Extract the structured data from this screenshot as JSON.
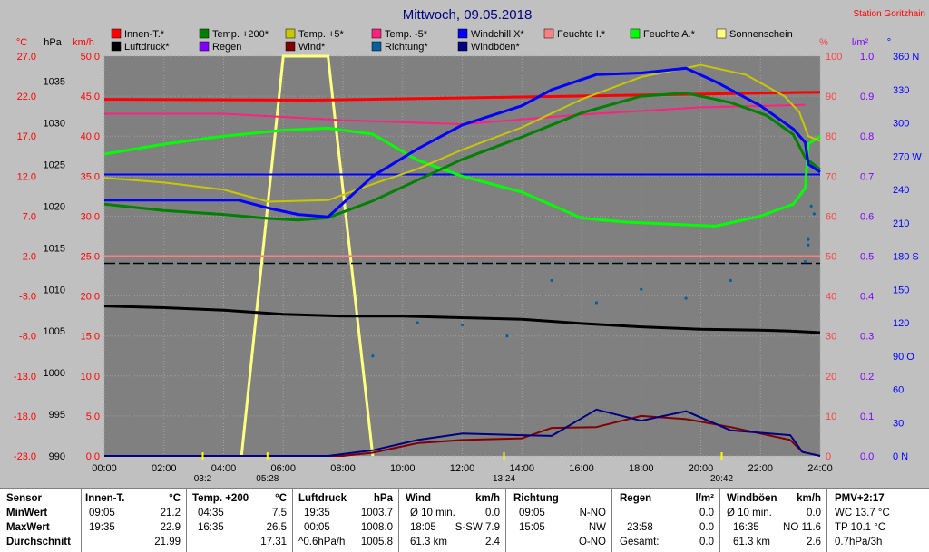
{
  "colors": {
    "background": "#c0c0c0",
    "plot": "#808080",
    "innen_t": "#ff0000",
    "temp200": "#008000",
    "temp5": "#c8c800",
    "temp_m5": "#ff2080",
    "windchill": "#0000ff",
    "feuchte_i": "#ff8080",
    "feuchte_a": "#00ff00",
    "sonnenschein": "#ffff80",
    "luftdruck": "#000000",
    "regen": "#8000ff",
    "wind": "#800000",
    "richtung": "#0060a0",
    "windboeen": "#000080"
  },
  "chart_data": {
    "type": "line",
    "title": "Mittwoch, 09.05.2018",
    "station": "Station Goritzhain",
    "x_ticks": [
      "00:00",
      "02:00",
      "04:00",
      "06:00",
      "08:00",
      "10:00",
      "12:00",
      "14:00",
      "16:00",
      "18:00",
      "20:00",
      "22:00",
      "24:00"
    ],
    "axes": [
      {
        "label": "°C",
        "color": "#ff0000",
        "ticks": [
          "27.0",
          "22.0",
          "17.0",
          "12.0",
          "7.0",
          "2.0",
          "-3.0",
          "-8.0",
          "-13.0",
          "-18.0",
          "-23.0"
        ],
        "range": [
          -23,
          27
        ]
      },
      {
        "label": "hPa",
        "color": "#000000",
        "ticks": [
          "1035",
          "1030",
          "1025",
          "1020",
          "1015",
          "1010",
          "1005",
          "1000",
          "995",
          "990"
        ],
        "range": [
          990,
          1038
        ]
      },
      {
        "label": "km/h",
        "color": "#ff0000",
        "ticks": [
          "50.0",
          "45.0",
          "40.0",
          "35.0",
          "30.0",
          "25.0",
          "20.0",
          "15.0",
          "10.0",
          "5.0",
          "0.0"
        ],
        "range": [
          0,
          50
        ]
      },
      {
        "label": "%",
        "color": "#ff4040",
        "ticks": [
          "100",
          "90",
          "80",
          "70",
          "60",
          "50",
          "40",
          "30",
          "20",
          "10",
          "0"
        ],
        "range": [
          0,
          100
        ]
      },
      {
        "label": "l/m²",
        "color": "#8000ff",
        "ticks": [
          "1.0",
          "0.9",
          "0.8",
          "0.7",
          "0.6",
          "0.5",
          "0.4",
          "0.3",
          "0.2",
          "0.1",
          "0.0"
        ],
        "range": [
          0,
          1
        ]
      },
      {
        "label": "°",
        "color": "#0000ff",
        "ticks": [
          "360 N",
          "330",
          "300",
          "270 W",
          "240",
          "210",
          "180 S",
          "150",
          "120",
          "90 O",
          "60",
          "30",
          "0 N"
        ],
        "range": [
          0,
          360
        ]
      }
    ],
    "legend": [
      {
        "name": "Innen-T.*",
        "color": "#ff0000"
      },
      {
        "name": "Temp. +200*",
        "color": "#008000"
      },
      {
        "name": "Temp. +5*",
        "color": "#c8c800"
      },
      {
        "name": "Temp. -5*",
        "color": "#ff2080"
      },
      {
        "name": "Windchill X*",
        "color": "#0000ff"
      },
      {
        "name": "Feuchte I.*",
        "color": "#ff8080"
      },
      {
        "name": "Feuchte A.*",
        "color": "#00ff00"
      },
      {
        "name": "Sonnenschein",
        "color": "#ffff80"
      },
      {
        "name": "Luftdruck*",
        "color": "#000000"
      },
      {
        "name": "Regen",
        "color": "#8000ff"
      },
      {
        "name": "Wind*",
        "color": "#800000"
      },
      {
        "name": "Richtung*",
        "color": "#0060a0"
      },
      {
        "name": "Windböen*",
        "color": "#000080"
      }
    ],
    "series": [
      {
        "name": "Innen-T.*",
        "axis": "°C",
        "color": "#ff0000",
        "width": 3,
        "points": [
          [
            0,
            21.6
          ],
          [
            7,
            21.5
          ],
          [
            14,
            21.9
          ],
          [
            24,
            22.5
          ]
        ]
      },
      {
        "name": "Feuchte I.*",
        "axis": "%",
        "color": "#ff8080",
        "width": 2,
        "points": [
          [
            0,
            50
          ],
          [
            24,
            50
          ]
        ]
      },
      {
        "name": "Temp. -5*",
        "axis": "°C",
        "color": "#ff2080",
        "width": 2,
        "points": [
          [
            0,
            19.8
          ],
          [
            4,
            19.8
          ],
          [
            8,
            19.0
          ],
          [
            12,
            18.5
          ],
          [
            16,
            19.7
          ],
          [
            20,
            20.6
          ],
          [
            23.5,
            20.9
          ]
        ]
      },
      {
        "name": "Feuchte A.*",
        "axis": "%",
        "color": "#00ff00",
        "width": 3,
        "points": [
          [
            0,
            75.5
          ],
          [
            2,
            78
          ],
          [
            4,
            80
          ],
          [
            6,
            81.5
          ],
          [
            7.5,
            82
          ],
          [
            9,
            80.5
          ],
          [
            10.5,
            74
          ],
          [
            12,
            70
          ],
          [
            14,
            66
          ],
          [
            16,
            59.5
          ],
          [
            17.5,
            58.5
          ],
          [
            19,
            58
          ],
          [
            20.5,
            57.5
          ],
          [
            22,
            60
          ],
          [
            23.1,
            63
          ],
          [
            23.5,
            67
          ],
          [
            23.6,
            78
          ],
          [
            24,
            80
          ]
        ]
      },
      {
        "name": "Temp. +200*",
        "axis": "°C",
        "color": "#008000",
        "width": 3,
        "points": [
          [
            0,
            8.5
          ],
          [
            2,
            7.7
          ],
          [
            4,
            7.2
          ],
          [
            5.5,
            6.7
          ],
          [
            6.5,
            6.5
          ],
          [
            7.5,
            6.8
          ],
          [
            9,
            8.9
          ],
          [
            10.5,
            11.5
          ],
          [
            12,
            14.1
          ],
          [
            14,
            16.9
          ],
          [
            16,
            19.9
          ],
          [
            18,
            22.0
          ],
          [
            19.5,
            22.4
          ],
          [
            21,
            21.2
          ],
          [
            22.2,
            19.6
          ],
          [
            23.1,
            17.2
          ],
          [
            23.5,
            14.3
          ],
          [
            24,
            12.8
          ]
        ]
      },
      {
        "name": "Temp. +5*",
        "axis": "°C",
        "color": "#c8c800",
        "width": 2,
        "points": [
          [
            0,
            11.8
          ],
          [
            2,
            11.2
          ],
          [
            4,
            10.3
          ],
          [
            5.5,
            8.8
          ],
          [
            7.5,
            9.0
          ],
          [
            9,
            11.0
          ],
          [
            10.5,
            12.9
          ],
          [
            12,
            15.3
          ],
          [
            14,
            18.1
          ],
          [
            16,
            21.6
          ],
          [
            18,
            24.4
          ],
          [
            20,
            25.9
          ],
          [
            21.5,
            24.7
          ],
          [
            22.8,
            22.0
          ],
          [
            23.3,
            20.0
          ],
          [
            23.6,
            17.0
          ],
          [
            24,
            16.4
          ]
        ]
      },
      {
        "name": "Windchill X*",
        "axis": "°C",
        "color": "#0000ff",
        "width": 3,
        "points": [
          [
            0,
            9.0
          ],
          [
            2,
            9.0
          ],
          [
            4.5,
            9.0
          ],
          [
            5.5,
            8.0
          ],
          [
            6.5,
            7.2
          ],
          [
            7.5,
            6.9
          ],
          [
            9,
            12.0
          ],
          [
            10.5,
            15.4
          ],
          [
            12,
            18.4
          ],
          [
            14,
            20.8
          ],
          [
            15,
            22.8
          ],
          [
            16.5,
            24.7
          ],
          [
            18,
            24.9
          ],
          [
            19.5,
            25.5
          ],
          [
            20.5,
            23.8
          ],
          [
            22,
            20.8
          ],
          [
            23.1,
            17.9
          ],
          [
            23.5,
            16.2
          ],
          [
            23.6,
            13.5
          ],
          [
            24,
            12.5
          ]
        ]
      },
      {
        "name": "Luftdruck*",
        "axis": "hPa",
        "color": "#000000",
        "width": 3,
        "points": [
          [
            0,
            1008.0
          ],
          [
            2,
            1007.8
          ],
          [
            4,
            1007.5
          ],
          [
            6,
            1007.0
          ],
          [
            8,
            1006.8
          ],
          [
            10,
            1006.8
          ],
          [
            12,
            1006.6
          ],
          [
            14,
            1006.4
          ],
          [
            16,
            1005.9
          ],
          [
            18,
            1005.5
          ],
          [
            20,
            1005.2
          ],
          [
            22,
            1005.1
          ],
          [
            23,
            1005.0
          ],
          [
            24,
            1004.8
          ]
        ]
      },
      {
        "name": "Wind*",
        "axis": "km/h",
        "color": "#800000",
        "width": 2,
        "points": [
          [
            0,
            0
          ],
          [
            8,
            0
          ],
          [
            9,
            0.4
          ],
          [
            10.5,
            1.6
          ],
          [
            12,
            2.0
          ],
          [
            14,
            2.2
          ],
          [
            15,
            3.5
          ],
          [
            16.5,
            3.6
          ],
          [
            18,
            5.0
          ],
          [
            19.5,
            4.6
          ],
          [
            21,
            3.6
          ],
          [
            23,
            2.0
          ],
          [
            23.4,
            0.5
          ],
          [
            24,
            0
          ]
        ]
      },
      {
        "name": "Windböen*",
        "axis": "km/h",
        "color": "#000080",
        "width": 2,
        "points": [
          [
            0,
            0
          ],
          [
            7.5,
            0
          ],
          [
            9,
            0.7
          ],
          [
            10.5,
            2.0
          ],
          [
            12,
            2.8
          ],
          [
            14,
            2.6
          ],
          [
            15,
            2.5
          ],
          [
            16.5,
            5.8
          ],
          [
            18,
            4.4
          ],
          [
            19.5,
            5.6
          ],
          [
            21,
            3.2
          ],
          [
            23,
            2.6
          ],
          [
            23.4,
            0.5
          ],
          [
            24,
            0
          ]
        ]
      }
    ],
    "sunshine": {
      "name": "Sonnenschein",
      "color": "#ffff80",
      "points": [
        [
          4.6,
          0
        ],
        [
          6,
          100
        ],
        [
          7.5,
          100
        ],
        [
          9,
          0
        ]
      ]
    },
    "richtung_dots": [
      [
        9,
        90
      ],
      [
        10.5,
        120
      ],
      [
        12,
        118
      ],
      [
        13.5,
        108
      ],
      [
        15,
        158
      ],
      [
        16.5,
        138
      ],
      [
        18,
        150
      ],
      [
        19.5,
        142
      ],
      [
        21,
        158
      ],
      [
        23.5,
        175
      ],
      [
        23.6,
        190
      ],
      [
        23.6,
        195
      ],
      [
        23.7,
        225
      ],
      [
        23.8,
        218
      ]
    ],
    "dash_line": {
      "axis": "°C",
      "value": 1.1,
      "color": "#000000"
    },
    "blue_line": {
      "axis": "°C",
      "value": 12.2,
      "color": "#0000ff"
    },
    "markers": [
      {
        "label": "03:2",
        "hour": 3.3
      },
      {
        "label": "05:28",
        "hour": 5.47
      },
      {
        "label": "13:24",
        "hour": 13.4
      },
      {
        "label": "20:42",
        "hour": 20.7
      }
    ]
  },
  "table": {
    "sensor": {
      "title": "Sensor",
      "rows": [
        "MinWert",
        "MaxWert",
        "Durchschnitt"
      ]
    },
    "innen": {
      "title": "Innen-T.",
      "unit": "°C",
      "r1a": "09:05",
      "r1b": "21.2",
      "r2a": "19:35",
      "r2b": "22.9",
      "r3a": "",
      "r3b": "21.99"
    },
    "temp200": {
      "title": "Temp. +200",
      "unit": "°C",
      "r1a": "04:35",
      "r1b": "7.5",
      "r2a": "16:35",
      "r2b": "26.5",
      "r3a": "",
      "r3b": "17.31"
    },
    "luftdruck": {
      "title": "Luftdruck",
      "unit": "hPa",
      "r1a": "19:35",
      "r1b": "1003.7",
      "r2a": "00:05",
      "r2b": "1008.0",
      "r3a": "^0.6hPa/h",
      "r3b": "1005.8"
    },
    "wind": {
      "title": "Wind",
      "unit": "km/h",
      "r1a": "Ø 10 min.",
      "r1b": "0.0",
      "r2a": "18:05",
      "r2b": "S-SW 7.9",
      "r3a": "61.3 km",
      "r3b": "2.4"
    },
    "richtung": {
      "title": "Richtung",
      "unit": "",
      "r1a": "09:05",
      "r1b": "N-NO",
      "r2a": "15:05",
      "r2b": "NW",
      "r3a": "",
      "r3b": "O-NO"
    },
    "regen": {
      "title": "Regen",
      "unit": "l/m²",
      "r1a": "",
      "r1b": "0.0",
      "r2a": "23:58",
      "r2b": "0.0",
      "r3a": "Gesamt:",
      "r3b": "0.0"
    },
    "windboeen": {
      "title": "Windböen",
      "unit": "km/h",
      "r1a": "Ø 10 min.",
      "r1b": "0.0",
      "r2a": "16:35",
      "r2b": "NO 11.6",
      "r3a": "61.3 km",
      "r3b": "2.6"
    },
    "pmv": {
      "title": "PMV+2:17",
      "r1": "WC 13.7 °C",
      "r2": "TP 10.1 °C",
      "r3": "0.7hPa/3h"
    }
  }
}
